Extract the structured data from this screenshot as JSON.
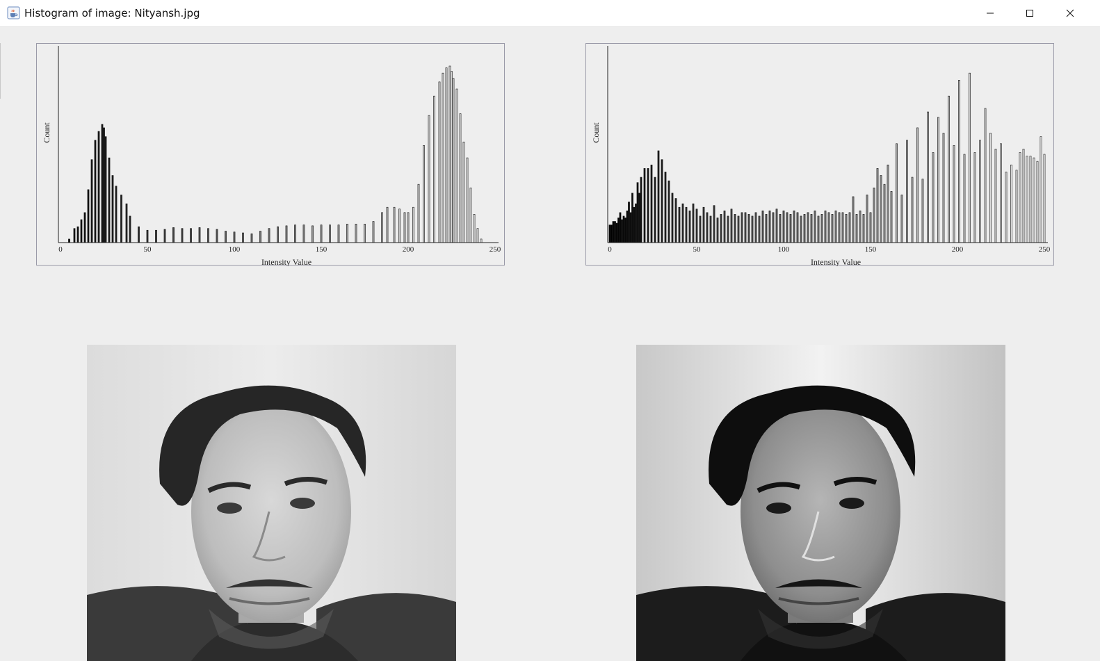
{
  "window": {
    "title": "Histogram of image: Nityansh.jpg",
    "app_icon": "java-coffee-cup-icon",
    "controls": [
      "minimize-icon",
      "maximize-icon",
      "close-icon"
    ]
  },
  "colors": {
    "background": "#eeeeee",
    "panel_border": "#9a9aa8",
    "bar_dark": "#101010",
    "bar_light": "#ffffff"
  },
  "chart_data": [
    {
      "type": "bar",
      "title": "",
      "xlabel": "Intensity Value",
      "ylabel": "Count",
      "xlim": [
        0,
        255
      ],
      "x_ticks": [
        "0",
        "50",
        "100",
        "150",
        "200",
        "250"
      ],
      "bars_shaded_by_intensity": true,
      "y_relative_max": 1.0,
      "x": [
        5,
        8,
        10,
        12,
        14,
        16,
        18,
        20,
        22,
        24,
        25,
        26,
        28,
        30,
        32,
        35,
        38,
        40,
        45,
        50,
        55,
        60,
        65,
        70,
        75,
        80,
        85,
        90,
        95,
        100,
        105,
        110,
        115,
        120,
        125,
        130,
        135,
        140,
        145,
        150,
        155,
        160,
        165,
        170,
        175,
        180,
        185,
        188,
        192,
        195,
        198,
        200,
        203,
        206,
        209,
        212,
        215,
        218,
        220,
        222,
        224,
        225,
        226,
        228,
        230,
        232,
        234,
        236,
        238,
        240,
        242
      ],
      "values": [
        0.02,
        0.08,
        0.09,
        0.13,
        0.17,
        0.3,
        0.47,
        0.58,
        0.63,
        0.67,
        0.65,
        0.6,
        0.48,
        0.38,
        0.32,
        0.27,
        0.22,
        0.15,
        0.09,
        0.07,
        0.07,
        0.075,
        0.085,
        0.08,
        0.08,
        0.085,
        0.08,
        0.075,
        0.065,
        0.06,
        0.055,
        0.05,
        0.065,
        0.08,
        0.09,
        0.095,
        0.1,
        0.1,
        0.095,
        0.1,
        0.1,
        0.1,
        0.105,
        0.105,
        0.105,
        0.12,
        0.17,
        0.2,
        0.2,
        0.19,
        0.17,
        0.17,
        0.2,
        0.33,
        0.55,
        0.72,
        0.83,
        0.91,
        0.96,
        0.99,
        1.0,
        0.97,
        0.93,
        0.87,
        0.73,
        0.57,
        0.48,
        0.31,
        0.16,
        0.08,
        0.02
      ]
    },
    {
      "type": "bar",
      "title": "",
      "xlabel": "Intensity Value",
      "ylabel": "Count",
      "xlim": [
        0,
        255
      ],
      "x_ticks": [
        "0",
        "50",
        "100",
        "150",
        "200",
        "250"
      ],
      "bars_shaded_by_intensity": true,
      "y_relative_max": 1.0,
      "x": [
        0,
        1,
        2,
        3,
        4,
        5,
        6,
        7,
        8,
        9,
        10,
        11,
        12,
        13,
        14,
        15,
        16,
        17,
        18,
        20,
        22,
        24,
        26,
        28,
        30,
        32,
        34,
        36,
        38,
        40,
        42,
        44,
        46,
        48,
        50,
        52,
        54,
        56,
        58,
        60,
        62,
        64,
        66,
        68,
        70,
        72,
        74,
        76,
        78,
        80,
        82,
        84,
        86,
        88,
        90,
        92,
        94,
        96,
        98,
        100,
        102,
        104,
        106,
        108,
        110,
        112,
        114,
        116,
        118,
        120,
        122,
        124,
        126,
        128,
        130,
        132,
        134,
        136,
        138,
        140,
        142,
        144,
        146,
        148,
        150,
        152,
        154,
        156,
        158,
        160,
        162,
        165,
        168,
        171,
        174,
        177,
        180,
        183,
        186,
        189,
        192,
        195,
        198,
        201,
        204,
        207,
        210,
        213,
        216,
        219,
        222,
        225,
        228,
        231,
        234,
        236,
        238,
        240,
        242,
        244,
        246,
        248,
        250
      ],
      "values": [
        0.1,
        0.1,
        0.12,
        0.12,
        0.11,
        0.14,
        0.17,
        0.13,
        0.15,
        0.14,
        0.18,
        0.23,
        0.17,
        0.28,
        0.2,
        0.22,
        0.34,
        0.28,
        0.37,
        0.42,
        0.42,
        0.44,
        0.37,
        0.52,
        0.47,
        0.4,
        0.35,
        0.28,
        0.25,
        0.2,
        0.22,
        0.2,
        0.18,
        0.22,
        0.19,
        0.15,
        0.2,
        0.17,
        0.15,
        0.21,
        0.14,
        0.16,
        0.18,
        0.15,
        0.19,
        0.16,
        0.15,
        0.17,
        0.17,
        0.16,
        0.15,
        0.17,
        0.15,
        0.18,
        0.16,
        0.18,
        0.17,
        0.19,
        0.16,
        0.18,
        0.17,
        0.16,
        0.18,
        0.17,
        0.15,
        0.16,
        0.17,
        0.16,
        0.18,
        0.15,
        0.16,
        0.18,
        0.17,
        0.16,
        0.18,
        0.17,
        0.17,
        0.16,
        0.17,
        0.26,
        0.16,
        0.18,
        0.16,
        0.27,
        0.17,
        0.31,
        0.42,
        0.38,
        0.33,
        0.44,
        0.29,
        0.56,
        0.27,
        0.58,
        0.37,
        0.65,
        0.36,
        0.74,
        0.51,
        0.71,
        0.62,
        0.83,
        0.55,
        0.92,
        0.5,
        0.96,
        0.51,
        0.58,
        0.76,
        0.62,
        0.53,
        0.56,
        0.4,
        0.44,
        0.41,
        0.51,
        0.53,
        0.49,
        0.49,
        0.48,
        0.46,
        0.6,
        0.5
      ]
    }
  ],
  "images": [
    {
      "name": "original-grayscale-portrait",
      "content": "grayscale portrait"
    },
    {
      "name": "equalized-grayscale-portrait",
      "content": "histogram-equalized grayscale portrait"
    }
  ]
}
